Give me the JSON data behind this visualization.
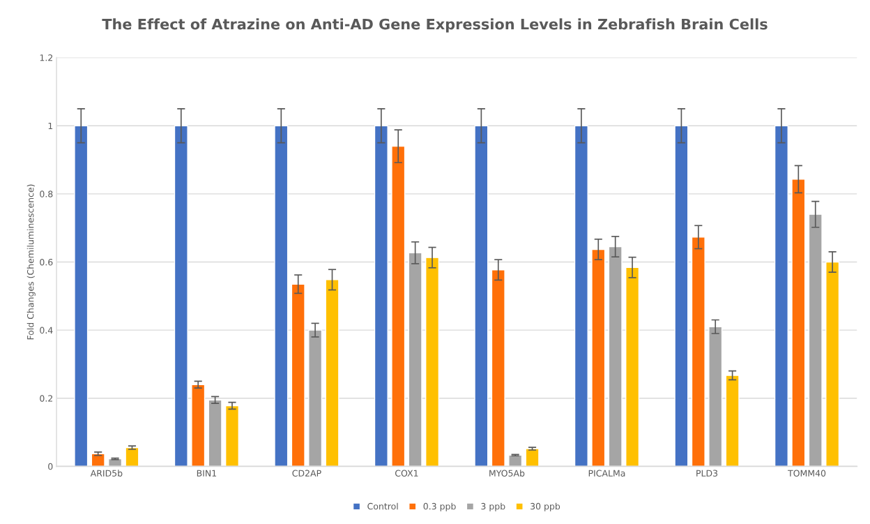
{
  "chart_data": {
    "type": "bar",
    "title": "The Effect of Atrazine on Anti-AD Gene Expression Levels in Zebrafish Brain Cells",
    "ylabel": "Fold Changes (Chemiluminescence)",
    "categories": [
      "ARID5b",
      "BIN1",
      "CD2AP",
      "COX1",
      "MYO5Ab",
      "PICALMa",
      "PLD3",
      "TOMM40"
    ],
    "series": [
      {
        "name": "Control",
        "color": "#4472c4",
        "values": [
          1,
          1,
          1,
          1,
          1,
          1,
          1,
          1
        ],
        "errors": [
          0.05,
          0.05,
          0.05,
          0.05,
          0.05,
          0.05,
          0.05,
          0.05
        ]
      },
      {
        "name": "0.3 ppb",
        "color": "#ff7009",
        "values": [
          0.037,
          0.24,
          0.535,
          0.94,
          0.577,
          0.637,
          0.673,
          0.843
        ],
        "errors": [
          0.005,
          0.01,
          0.027,
          0.048,
          0.03,
          0.03,
          0.034,
          0.04
        ]
      },
      {
        "name": "3 ppb",
        "color": "#a5a5a5",
        "values": [
          0.022,
          0.195,
          0.4,
          0.627,
          0.033,
          0.645,
          0.41,
          0.74
        ],
        "errors": [
          0.002,
          0.01,
          0.02,
          0.032,
          0.002,
          0.03,
          0.02,
          0.038
        ]
      },
      {
        "name": "30 ppb",
        "color": "#ffc000",
        "values": [
          0.055,
          0.178,
          0.548,
          0.613,
          0.052,
          0.584,
          0.267,
          0.6
        ],
        "errors": [
          0.005,
          0.01,
          0.03,
          0.03,
          0.004,
          0.03,
          0.013,
          0.03
        ]
      }
    ],
    "ylim": [
      0,
      1.2
    ],
    "yticks": [
      0,
      0.2,
      0.4,
      0.6,
      0.8,
      1,
      {
        "value": 1.2,
        "label": "1.2"
      }
    ],
    "grid": "y",
    "legend": "bottom"
  }
}
